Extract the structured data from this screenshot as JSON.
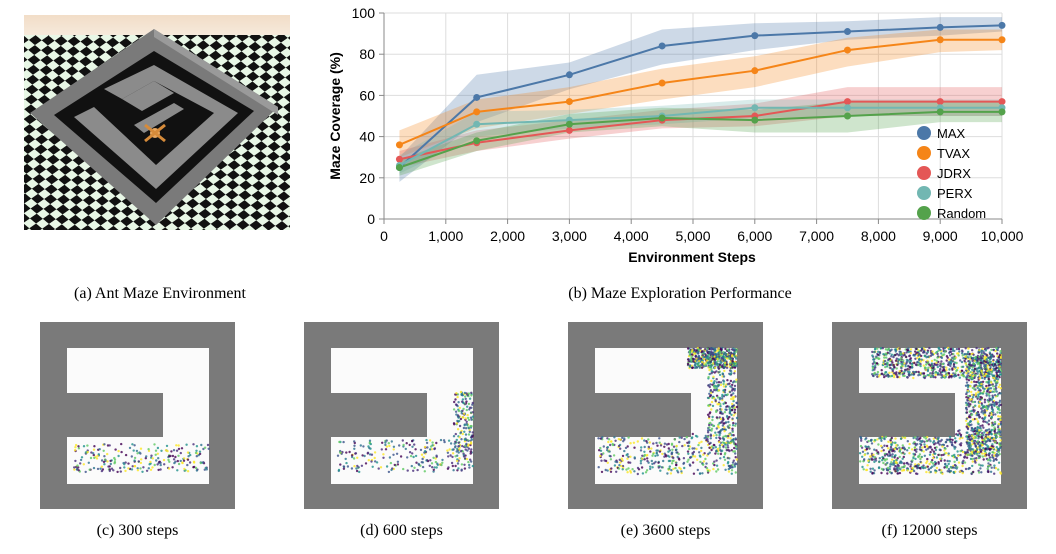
{
  "captions": {
    "a": "(a) Ant Maze Environment",
    "b": "(b) Maze Exploration Performance",
    "c": "(c) 300 steps",
    "d": "(d) 600 steps",
    "e": "(e) 3600 steps",
    "f": "(f) 12000 steps"
  },
  "chart_data": {
    "type": "line",
    "title": "",
    "xlabel": "Environment Steps",
    "ylabel": "Maze Coverage (%)",
    "xlim": [
      0,
      10000
    ],
    "ylim": [
      0,
      100
    ],
    "xticks": [
      0,
      1000,
      2000,
      3000,
      4000,
      5000,
      6000,
      7000,
      8000,
      9000,
      10000
    ],
    "xtick_labels": [
      "0",
      "1,000",
      "2,000",
      "3,000",
      "4,000",
      "5,000",
      "6,000",
      "7,000",
      "8,000",
      "9,000",
      "10,000"
    ],
    "yticks": [
      0,
      20,
      40,
      60,
      80,
      100
    ],
    "ytick_labels": [
      "0",
      "20",
      "40",
      "60",
      "80",
      "100"
    ],
    "grid": true,
    "legend_position": "bottom-right",
    "x": [
      250,
      1500,
      3000,
      4500,
      6000,
      7500,
      9000,
      10000
    ],
    "series": [
      {
        "name": "MAX",
        "color": "#4c78a8",
        "values": [
          25,
          59,
          70,
          84,
          89,
          91,
          93,
          94
        ],
        "lower": [
          18,
          47,
          63,
          75,
          82,
          87,
          89,
          91
        ],
        "upper": [
          30,
          70,
          76,
          92,
          95,
          96,
          98,
          98
        ]
      },
      {
        "name": "TVAX",
        "color": "#f58518",
        "values": [
          36,
          52,
          57,
          66,
          72,
          82,
          87,
          87
        ],
        "lower": [
          30,
          44,
          51,
          58,
          64,
          74,
          81,
          82
        ],
        "upper": [
          43,
          58,
          64,
          73,
          79,
          88,
          92,
          92
        ]
      },
      {
        "name": "JDRX",
        "color": "#e45756",
        "values": [
          29,
          37,
          43,
          48,
          50,
          57,
          57,
          57
        ],
        "lower": [
          25,
          33,
          39,
          44,
          45,
          50,
          50,
          50
        ],
        "upper": [
          33,
          43,
          48,
          53,
          56,
          64,
          64,
          64
        ]
      },
      {
        "name": "PERX",
        "color": "#72b7b2",
        "values": [
          26,
          46,
          48,
          50,
          54,
          54,
          54,
          54
        ],
        "lower": [
          22,
          40,
          44,
          46,
          49,
          50,
          50,
          50
        ],
        "upper": [
          31,
          52,
          53,
          55,
          58,
          58,
          58,
          58
        ]
      },
      {
        "name": "Random",
        "color": "#54a24b",
        "values": [
          25,
          38,
          46,
          49,
          48,
          50,
          52,
          52
        ],
        "lower": [
          21,
          33,
          42,
          45,
          42,
          42,
          47,
          47
        ],
        "upper": [
          29,
          42,
          51,
          54,
          53,
          57,
          57,
          57
        ]
      }
    ]
  }
}
